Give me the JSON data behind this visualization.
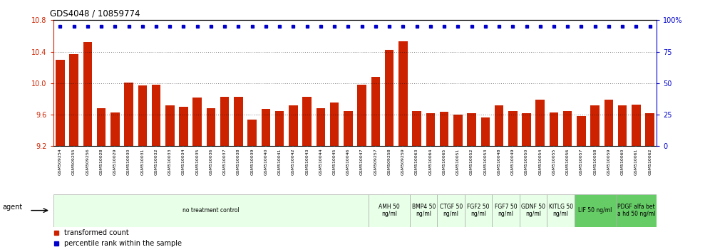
{
  "title": "GDS4048 / 10859774",
  "samples": [
    "GSM509254",
    "GSM509255",
    "GSM509256",
    "GSM510028",
    "GSM510029",
    "GSM510030",
    "GSM510031",
    "GSM510032",
    "GSM510033",
    "GSM510034",
    "GSM510035",
    "GSM510036",
    "GSM510037",
    "GSM510038",
    "GSM510039",
    "GSM510040",
    "GSM510041",
    "GSM510042",
    "GSM510043",
    "GSM510044",
    "GSM510045",
    "GSM510046",
    "GSM510047",
    "GSM509257",
    "GSM509258",
    "GSM509259",
    "GSM510063",
    "GSM510064",
    "GSM510065",
    "GSM510051",
    "GSM510052",
    "GSM510053",
    "GSM510048",
    "GSM510049",
    "GSM510050",
    "GSM510054",
    "GSM510055",
    "GSM510056",
    "GSM510057",
    "GSM510058",
    "GSM510059",
    "GSM510060",
    "GSM510061",
    "GSM510062"
  ],
  "bar_values": [
    10.3,
    10.37,
    10.52,
    9.68,
    9.63,
    10.01,
    9.97,
    9.98,
    9.72,
    9.7,
    9.82,
    9.68,
    9.83,
    9.83,
    9.54,
    9.67,
    9.65,
    9.72,
    9.83,
    9.68,
    9.75,
    9.65,
    9.98,
    10.08,
    10.42,
    10.53,
    9.65,
    9.62,
    9.64,
    9.6,
    9.62,
    9.56,
    9.72,
    9.65,
    9.62,
    9.79,
    9.63,
    9.65,
    9.58,
    9.72,
    9.79,
    9.72,
    9.73,
    9.62
  ],
  "percentile_values": [
    95,
    95,
    95,
    95,
    95,
    95,
    95,
    95,
    95,
    95,
    95,
    95,
    95,
    95,
    95,
    95,
    95,
    95,
    95,
    95,
    95,
    95,
    95,
    95,
    95,
    95,
    95,
    95,
    95,
    95,
    95,
    95,
    95,
    95,
    95,
    95,
    95,
    95,
    95,
    95,
    95,
    95,
    95,
    95
  ],
  "bar_color": "#cc2200",
  "dot_color": "#0000cc",
  "ylim_left": [
    9.2,
    10.8
  ],
  "ylim_right": [
    0,
    100
  ],
  "yticks_left": [
    9.2,
    9.6,
    10.0,
    10.4,
    10.8
  ],
  "yticks_right": [
    0,
    25,
    50,
    75,
    100
  ],
  "grid_values": [
    9.6,
    10.0,
    10.4
  ],
  "agent_groups": [
    {
      "label": "no treatment control",
      "start": 0,
      "end": 23,
      "color": "#e8ffe8",
      "darker": false
    },
    {
      "label": "AMH 50\nng/ml",
      "start": 23,
      "end": 26,
      "color": "#e8ffe8",
      "darker": false
    },
    {
      "label": "BMP4 50\nng/ml",
      "start": 26,
      "end": 28,
      "color": "#e8ffe8",
      "darker": false
    },
    {
      "label": "CTGF 50\nng/ml",
      "start": 28,
      "end": 30,
      "color": "#e8ffe8",
      "darker": false
    },
    {
      "label": "FGF2 50\nng/ml",
      "start": 30,
      "end": 32,
      "color": "#e8ffe8",
      "darker": false
    },
    {
      "label": "FGF7 50\nng/ml",
      "start": 32,
      "end": 34,
      "color": "#e8ffe8",
      "darker": false
    },
    {
      "label": "GDNF 50\nng/ml",
      "start": 34,
      "end": 36,
      "color": "#e8ffe8",
      "darker": false
    },
    {
      "label": "KITLG 50\nng/ml",
      "start": 36,
      "end": 38,
      "color": "#e8ffe8",
      "darker": false
    },
    {
      "label": "LIF 50 ng/ml",
      "start": 38,
      "end": 41,
      "color": "#66cc66",
      "darker": true
    },
    {
      "label": "PDGF alfa bet\na hd 50 ng/ml",
      "start": 41,
      "end": 44,
      "color": "#66cc66",
      "darker": true
    }
  ]
}
